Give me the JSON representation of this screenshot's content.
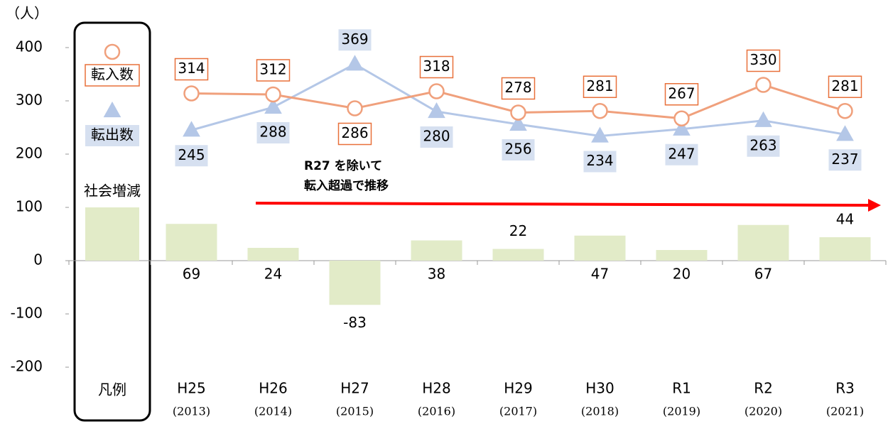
{
  "chart_data": {
    "type": "combo",
    "unit_label": "（人）",
    "legend_title": "凡例",
    "categories": [
      "H25",
      "H26",
      "H27",
      "H28",
      "H29",
      "H30",
      "R1",
      "R2",
      "R3"
    ],
    "category_sublabels": [
      "(2013)",
      "(2014)",
      "(2015)",
      "(2016)",
      "(2017)",
      "(2018)",
      "(2019)",
      "(2020)",
      "(2021)"
    ],
    "series": [
      {
        "name": "転入数",
        "type": "line",
        "marker": "circle",
        "color": "#f0a07c",
        "label_border": "#e8703a",
        "values": [
          314,
          312,
          286,
          318,
          278,
          281,
          267,
          330,
          281
        ]
      },
      {
        "name": "転出数",
        "type": "line",
        "marker": "triangle",
        "color": "#b4c7e7",
        "label_fill": "#d6e0f0",
        "values": [
          245,
          288,
          369,
          280,
          256,
          234,
          247,
          263,
          237
        ]
      },
      {
        "name": "社会増減",
        "type": "bar",
        "color": "#e2ebc8",
        "values": [
          69,
          24,
          -83,
          38,
          22,
          47,
          20,
          67,
          44
        ],
        "value_labels": [
          "69",
          "24",
          "-83",
          "38",
          "22",
          "47",
          "20",
          "67",
          "44"
        ]
      }
    ],
    "annotation": {
      "lines": [
        "R27 を除いて",
        "転入超過で推移"
      ],
      "color": "#ff0000"
    },
    "ylim": [
      -200,
      400
    ],
    "yticks": [
      400,
      300,
      200,
      100,
      0,
      -100,
      -200
    ]
  }
}
